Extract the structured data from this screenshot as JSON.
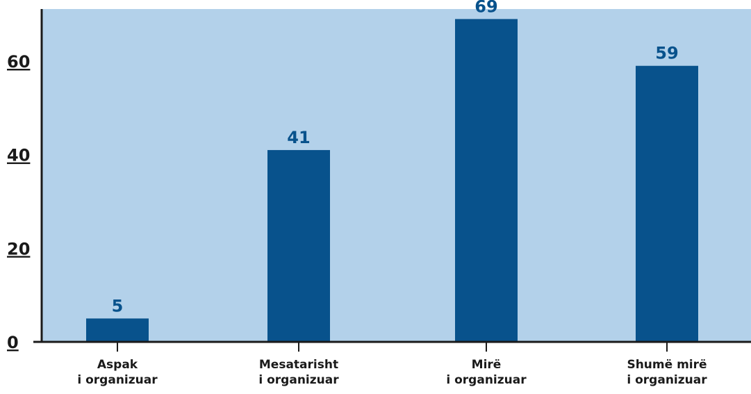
{
  "colors": {
    "plot_background": "#b3d1ea",
    "bar": "#08528c",
    "data_label": "#08528c",
    "axis": "#1a1a1a"
  },
  "chart_data": {
    "type": "bar",
    "categories": [
      [
        "Aspak",
        "i organizuar"
      ],
      [
        "Mesatarisht",
        "i organizuar"
      ],
      [
        "Mirë",
        "i organizuar"
      ],
      [
        "Shumë mirë",
        "i organizuar"
      ]
    ],
    "values": [
      5,
      41,
      69,
      59
    ],
    "ylim": [
      0,
      69
    ],
    "yticks": [
      "0",
      "20",
      "40",
      "60"
    ],
    "title": "",
    "xlabel": "",
    "ylabel": "",
    "grid": false,
    "legend": "none"
  }
}
